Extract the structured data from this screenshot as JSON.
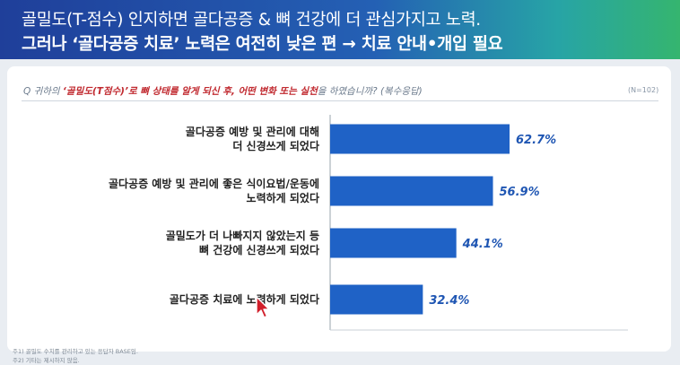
{
  "slide": {
    "title_line1": "골밀도(T-점수) 인지하면 골다공증 & 뼈 건강에 더 관심가지고 노력.",
    "title_line2": "그러나 ‘골다공증 치료’ 노력은 여전히 낮은 편 → 치료 안내•개입 필요"
  },
  "question": {
    "prefix": "Q 귀하의 ",
    "emphasis": "‘골밀도(T점수)’로 뼈 상태를 알게 되신 후, 어떤 변화 또는 실천",
    "suffix": "을 하였습니까? (복수응답)",
    "n_label": "(N=102)"
  },
  "footnotes": [
    "주1) 골밀도 수치를 관리하고 있는 응답자 BASE임.",
    "주2) 기타는 제시하지 않음."
  ],
  "colors": {
    "bar": "#1f62c6",
    "value": "#1f56b3",
    "accent": "#c0282e"
  },
  "chart_data": {
    "type": "bar",
    "orientation": "horizontal",
    "categories": [
      [
        "골다공증 예방 및 관리에 대해",
        "더 신경쓰게 되었다"
      ],
      [
        "골다공증 예방 및 관리에 좋은 식이요법/운동에",
        "노력하게 되었다"
      ],
      [
        "골밀도가 더 나빠지지 않았는지 등",
        "뼈 건강에 신경쓰게 되었다"
      ],
      [
        "골다공증 치료에 노력하게 되었다"
      ]
    ],
    "values": [
      62.7,
      56.9,
      44.1,
      32.4
    ],
    "value_labels": [
      "62.7%",
      "56.9%",
      "44.1%",
      "32.4%"
    ],
    "xlim": [
      0,
      100
    ],
    "grid": false
  }
}
